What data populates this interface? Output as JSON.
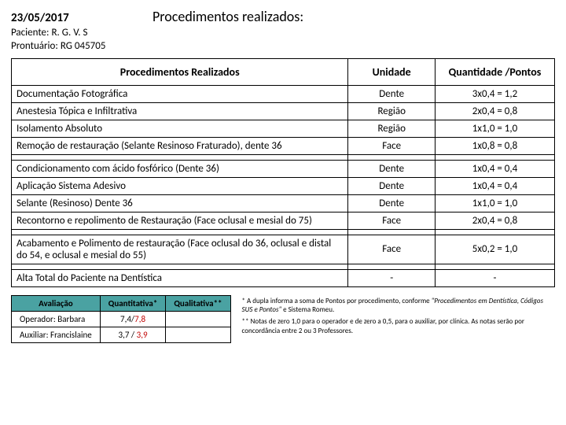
{
  "header": {
    "date": "23/05/2017",
    "title": "Procedimentos realizados:",
    "patient_label": "Paciente:",
    "patient_name": "R. G. V. S",
    "record_label": "Prontuário:",
    "record_value": "RG 045705"
  },
  "table": {
    "col_proc": "Procedimentos Realizados",
    "col_unit": "Unidade",
    "col_qty": "Quantidade /Pontos",
    "rows": [
      {
        "proc": "Documentação Fotográfica",
        "unit": "Dente",
        "qty": "3x0,4 = 1,2"
      },
      {
        "proc": "Anestesia Tópica e Infiltrativa",
        "unit": "Região",
        "qty": "2x0,4 = 0,8"
      },
      {
        "proc": "Isolamento Absoluto",
        "unit": "Região",
        "qty": "1x1,0 = 1,0"
      },
      {
        "proc": "Remoção de restauração (Selante Resinoso Fraturado), dente 36",
        "unit": "Face",
        "qty": "1x0,8 = 0,8"
      },
      {
        "proc": "Condicionamento com ácido fosfórico (Dente 36)",
        "unit": "Dente",
        "qty": "1x0,4 = 0,4"
      },
      {
        "proc": "Aplicação Sistema Adesivo",
        "unit": "Dente",
        "qty": "1x0,4 = 0,4"
      },
      {
        "proc": "Selante (Resinoso) Dente 36",
        "unit": "Dente",
        "qty": "1x1,0 = 1,0"
      },
      {
        "proc": "Recontorno e repolimento de Restauração (Face oclusal e mesial do 75)",
        "unit": "Face",
        "qty": "2x0,4 = 0,8"
      },
      {
        "proc": "Acabamento e Polimento de restauração (Face oclusal do 36, oclusal e distal do 54, e oclusal e mesial do 55)",
        "unit": "Face",
        "qty": "5x0,2 = 1,0"
      },
      {
        "proc": "Alta Total do Paciente na Dentística",
        "unit": "-",
        "qty": "-"
      }
    ]
  },
  "eval": {
    "col_av": "Avaliação",
    "col_quant": "Quantitativa*",
    "col_qual": "Qualitativa**",
    "row1_label": "Operador: Barbara",
    "row1_q1a": "7,4/",
    "row1_q1b": "7,8",
    "row2_label": "Auxiliar: Francislaine",
    "row2_q1a": "3,7 /",
    "row2_q1b": "3,9"
  },
  "notes": {
    "n1a": "* A dupla informa a soma de Pontos por procedimento, conforme ",
    "n1b": "\"Procedimentos em Dentística, Códigos SUS e Pontos\"",
    "n1c": " e Sistema Romeu.",
    "n2": "** Notas de zero 1,0 para o operador e de zero a 0,5, para o auxiliar, por clínica. As notas serão por concordância entre 2 ou 3 Professores."
  }
}
